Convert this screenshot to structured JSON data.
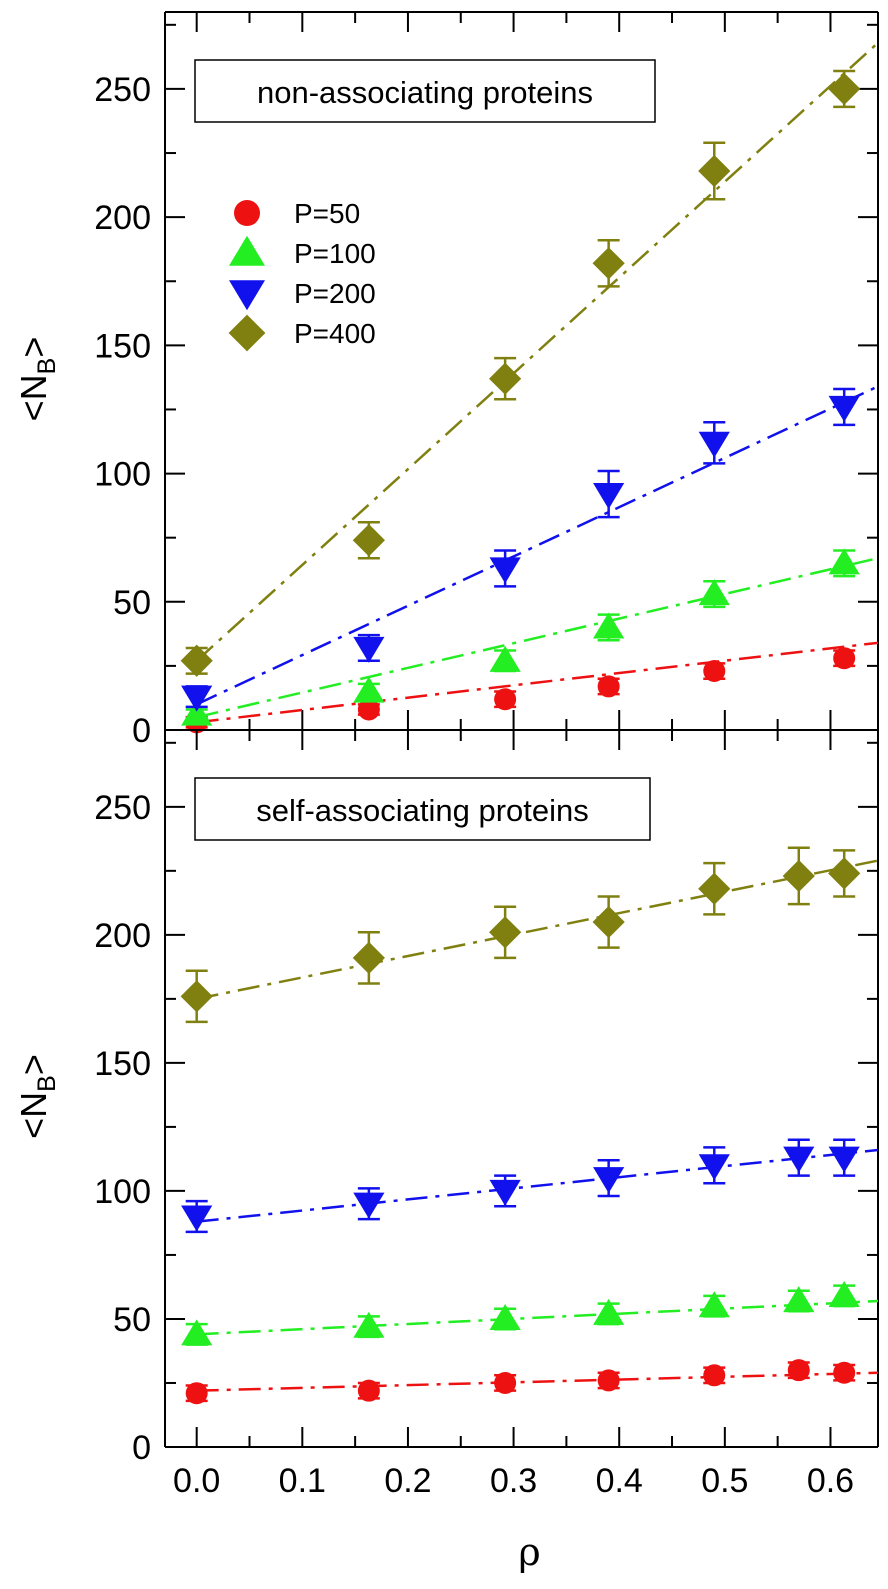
{
  "colors": {
    "P=50": "#ee1111",
    "P=100": "#22ee22",
    "P=200": "#1111ee",
    "P=400": "#808010"
  },
  "xaxis": {
    "title": "ρ",
    "xlim": [
      -0.03,
      0.645
    ],
    "ticks": [
      0.0,
      0.1,
      0.2,
      0.3,
      0.4,
      0.5,
      0.6
    ],
    "tick_labels": [
      "0.0",
      "0.1",
      "0.2",
      "0.3",
      "0.4",
      "0.5",
      "0.6"
    ]
  },
  "chart_data": [
    {
      "type": "scatter",
      "title": "non-associating proteins",
      "xlabel": "ρ",
      "ylabel": "<N_B>",
      "ylabel_main": "<N",
      "ylabel_sub": "B",
      "ylabel_end": ">",
      "xlim": [
        -0.03,
        0.645
      ],
      "ylim": [
        0,
        280
      ],
      "yticks": [
        0,
        50,
        100,
        150,
        200,
        250
      ],
      "ytick_labels": [
        "0",
        "50",
        "100",
        "150",
        "200",
        "250"
      ],
      "legend": {
        "placement": "upper-left",
        "entries": [
          "P=50",
          "P=100",
          "P=200",
          "P=400"
        ]
      },
      "series": [
        {
          "name": "P=50",
          "marker": "circle",
          "x": [
            0.0,
            0.163,
            0.292,
            0.39,
            0.49,
            0.613
          ],
          "y": [
            3,
            8,
            12,
            17,
            23,
            28
          ],
          "err": [
            2,
            2,
            3,
            3,
            3,
            3
          ],
          "fit": [
            [
              0.0,
              3
            ],
            [
              0.645,
              34
            ]
          ]
        },
        {
          "name": "P=100",
          "marker": "triangle-up",
          "x": [
            0.0,
            0.163,
            0.292,
            0.39,
            0.49,
            0.613
          ],
          "y": [
            6,
            15,
            27,
            40,
            53,
            65
          ],
          "err": [
            2,
            3,
            4,
            5,
            5,
            5
          ],
          "fit": [
            [
              0.0,
              5
            ],
            [
              0.645,
              67
            ]
          ]
        },
        {
          "name": "P=200",
          "marker": "triangle-down",
          "x": [
            0.0,
            0.163,
            0.292,
            0.39,
            0.49,
            0.613
          ],
          "y": [
            13,
            32,
            63,
            92,
            112,
            126
          ],
          "err": [
            4,
            5,
            7,
            9,
            8,
            7
          ],
          "fit": [
            [
              0.0,
              10
            ],
            [
              0.645,
              134
            ]
          ]
        },
        {
          "name": "P=400",
          "marker": "diamond",
          "x": [
            0.0,
            0.163,
            0.292,
            0.39,
            0.49,
            0.613
          ],
          "y": [
            27,
            74,
            137,
            182,
            218,
            250
          ],
          "err": [
            5,
            7,
            8,
            9,
            11,
            7
          ],
          "fit": [
            [
              0.0,
              27
            ],
            [
              0.645,
              268
            ]
          ]
        }
      ]
    },
    {
      "type": "scatter",
      "title": "self-associating proteins",
      "xlabel": "ρ",
      "ylabel": "<N_B>",
      "ylabel_main": "<N",
      "ylabel_sub": "B",
      "ylabel_end": ">",
      "xlim": [
        -0.03,
        0.645
      ],
      "ylim": [
        0,
        280
      ],
      "yticks": [
        0,
        50,
        100,
        150,
        200,
        250
      ],
      "ytick_labels": [
        "0",
        "50",
        "100",
        "150",
        "200",
        "250"
      ],
      "series": [
        {
          "name": "P=50",
          "marker": "circle",
          "x": [
            0.0,
            0.163,
            0.292,
            0.39,
            0.49,
            0.57,
            0.613
          ],
          "y": [
            21,
            22,
            25,
            26,
            28,
            30,
            29
          ],
          "err": [
            3,
            3,
            3,
            3,
            3,
            3,
            3
          ],
          "fit": [
            [
              0.0,
              22
            ],
            [
              0.645,
              29
            ]
          ]
        },
        {
          "name": "P=100",
          "marker": "triangle-up",
          "x": [
            0.0,
            0.163,
            0.292,
            0.39,
            0.49,
            0.57,
            0.613
          ],
          "y": [
            44,
            47,
            50,
            52,
            55,
            57,
            59
          ],
          "err": [
            4,
            4,
            4,
            4,
            4,
            4,
            4
          ],
          "fit": [
            [
              0.0,
              44
            ],
            [
              0.645,
              57
            ]
          ]
        },
        {
          "name": "P=200",
          "marker": "triangle-down",
          "x": [
            0.0,
            0.163,
            0.292,
            0.39,
            0.49,
            0.57,
            0.613
          ],
          "y": [
            90,
            95,
            100,
            105,
            110,
            113,
            113
          ],
          "err": [
            6,
            6,
            6,
            7,
            7,
            7,
            7
          ],
          "fit": [
            [
              0.0,
              88
            ],
            [
              0.645,
              116
            ]
          ]
        },
        {
          "name": "P=400",
          "marker": "diamond",
          "x": [
            0.0,
            0.163,
            0.292,
            0.39,
            0.49,
            0.57,
            0.613
          ],
          "y": [
            176,
            191,
            201,
            205,
            218,
            223,
            224
          ],
          "err": [
            10,
            10,
            10,
            10,
            10,
            11,
            9
          ],
          "fit": [
            [
              0.0,
              175
            ],
            [
              0.645,
              229
            ]
          ]
        }
      ]
    }
  ]
}
